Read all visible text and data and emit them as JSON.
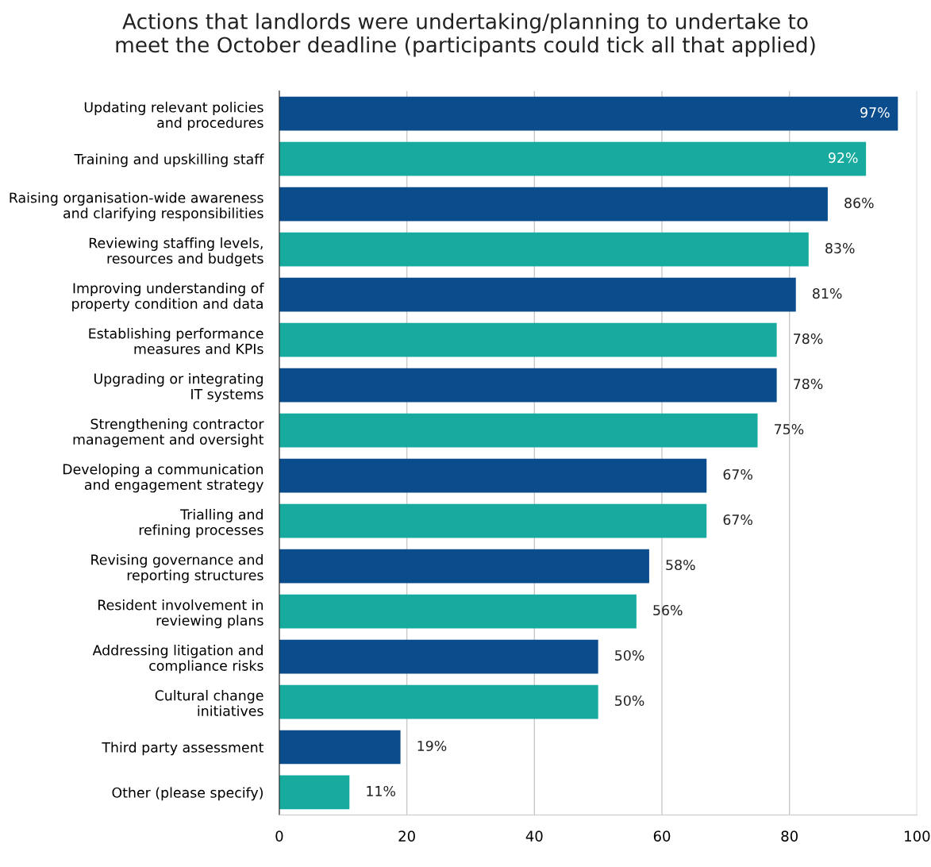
{
  "chart_data": {
    "type": "bar",
    "orientation": "horizontal",
    "title": "Actions that landlords were undertaking/planning to undertake to\nmeet the October deadline (participants could tick all that applied)",
    "categories": [
      "Updating relevant policies\nand procedures",
      "Training and upskilling staff",
      "Raising organisation-wide awareness\nand clarifying responsibilities",
      "Reviewing staffing levels,\nresources and budgets",
      "Improving understanding of\nproperty condition and data",
      "Establishing performance\nmeasures and KPIs",
      "Upgrading or integrating\nIT systems",
      "Strengthening contractor\nmanagement and oversight",
      "Developing a communication\nand engagement strategy",
      "Trialling and\nrefining processes",
      "Revising governance and\nreporting structures",
      "Resident involvement in\nreviewing plans",
      "Addressing litigation and\ncompliance risks",
      "Cultural change\ninitiatives",
      "Third party assessment",
      "Other (please specify)"
    ],
    "values": [
      97,
      92,
      86,
      83,
      81,
      78,
      78,
      75,
      67,
      67,
      58,
      56,
      50,
      50,
      19,
      11
    ],
    "value_labels": [
      "97%",
      "92%",
      "86%",
      "83%",
      "81%",
      "78%",
      "78%",
      "75%",
      "67%",
      "67%",
      "58%",
      "56%",
      "50%",
      "50%",
      "19%",
      "11%"
    ],
    "colors": [
      "#0b4d8c",
      "#17ab9f",
      "#0b4d8c",
      "#17ab9f",
      "#0b4d8c",
      "#17ab9f",
      "#0b4d8c",
      "#17ab9f",
      "#0b4d8c",
      "#17ab9f",
      "#0b4d8c",
      "#17ab9f",
      "#0b4d8c",
      "#17ab9f",
      "#0b4d8c",
      "#17ab9f"
    ],
    "xlim": [
      0,
      100
    ],
    "xticks": [
      0,
      20,
      40,
      60,
      80,
      100
    ],
    "grid": "x"
  }
}
